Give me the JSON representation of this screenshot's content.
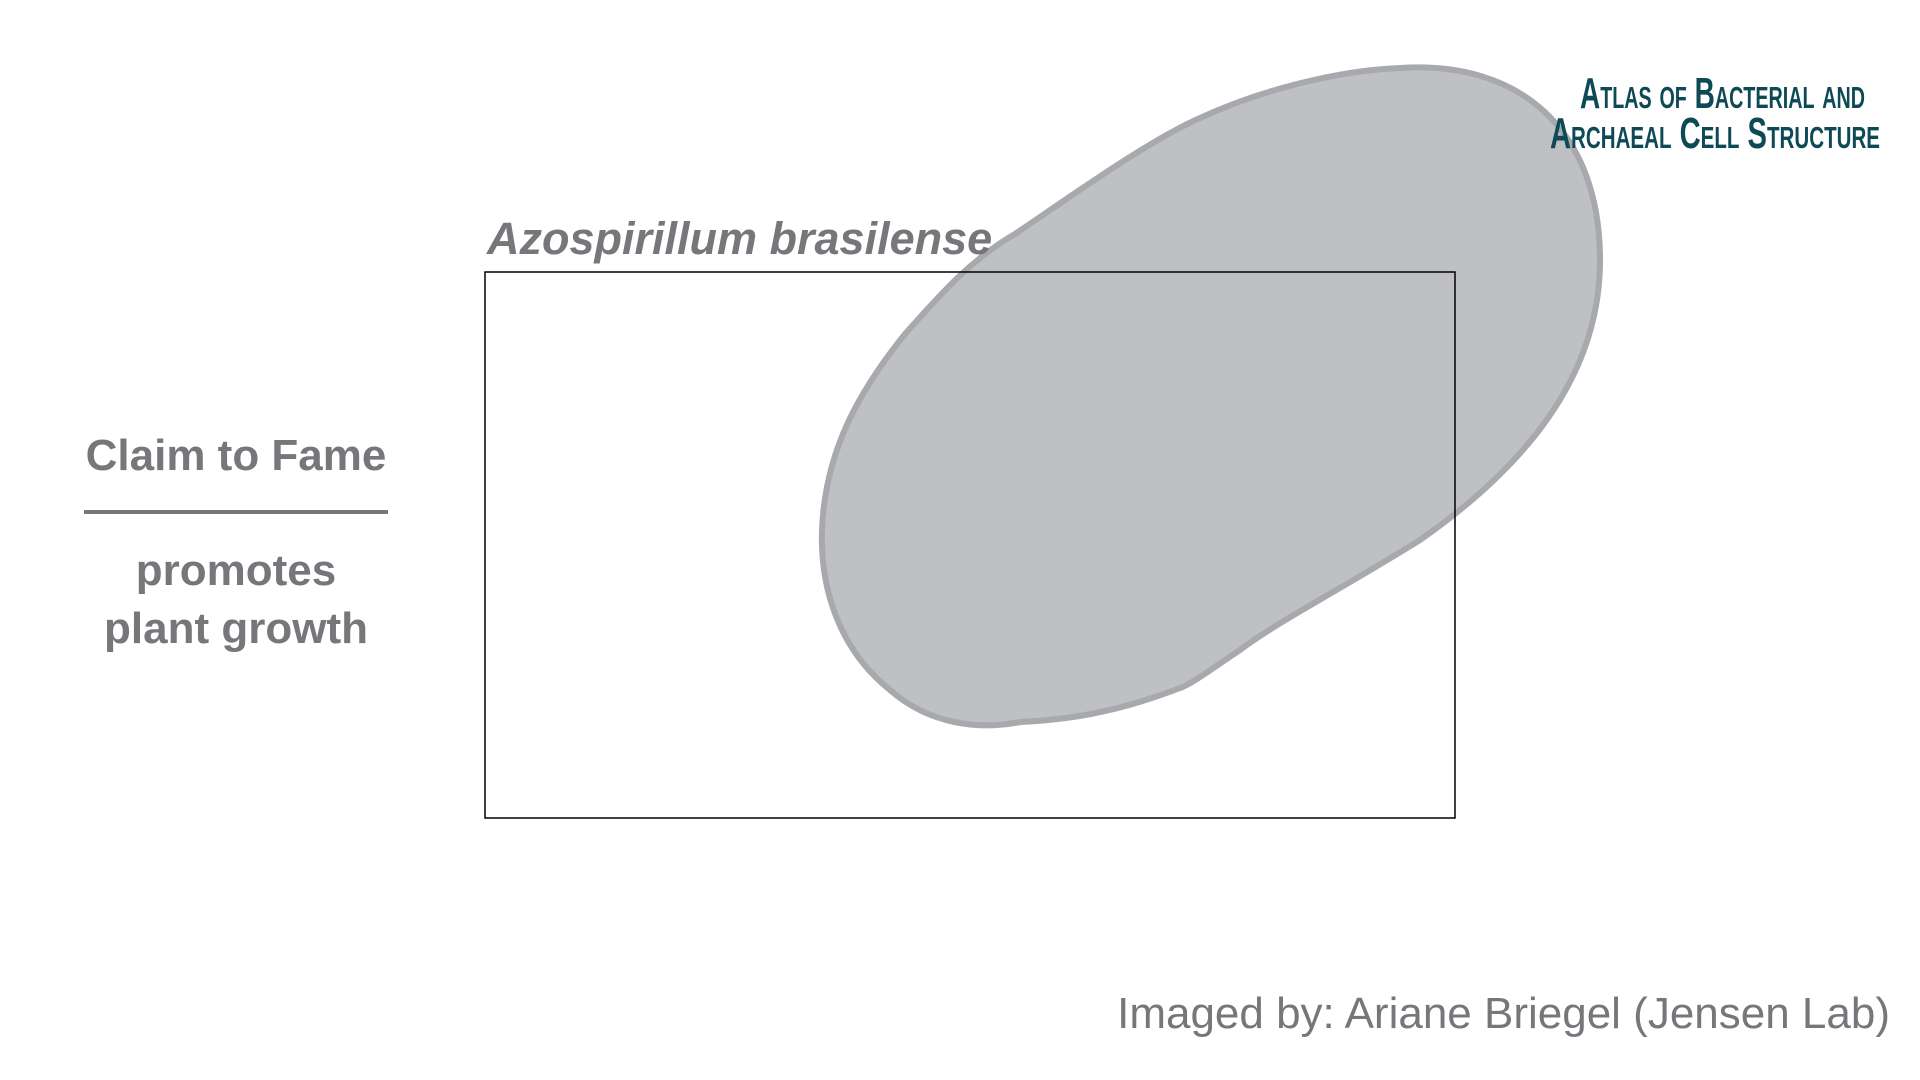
{
  "slide": {
    "title": "Azospirillum brasilense",
    "claim_heading": "Claim to Fame",
    "claim_lines": [
      "promotes",
      "plant growth"
    ],
    "credit": "Imaged by: Ariane Briegel (Jensen Lab)",
    "logo_lines": [
      "Atlas of Bacterial and",
      "Archaeal Cell Structure"
    ]
  }
}
